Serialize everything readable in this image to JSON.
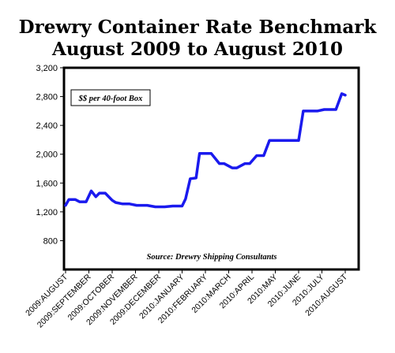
{
  "chart_data": {
    "type": "line",
    "title": [
      "Drewry Container Rate Benchmark",
      "August 2009 to August 2010"
    ],
    "legend_box_text": "$$ per 40-foot Box",
    "source_note": "Source: Drewry Shipping Consultants",
    "ylim": [
      400,
      3200
    ],
    "y_ticks": [
      800,
      1200,
      1600,
      2000,
      2400,
      2800,
      3200
    ],
    "y_tick_labels": [
      "800",
      "1,200",
      "1,600",
      "2,000",
      "2,400",
      "2,800",
      "3,200"
    ],
    "grid": false,
    "line_color": "#1a1aee",
    "x_tick_labels": [
      "2009:AUGUST",
      "2009:SEPTEMBER",
      "2009:OCTOBER",
      "2009:NOVEMBER",
      "2009:DECEMBER",
      "2010:JANUARY",
      "2010:FEBRUARY",
      "2010:MARCH",
      "2010:APRIL",
      "2010:MAY",
      "2010:JUNE",
      "2010:JULY",
      "2010:AUGUST"
    ],
    "series": [
      {
        "x": [
          0,
          0.14,
          0.42,
          0.6,
          0.88,
          1.1,
          1.3,
          1.45,
          1.7,
          2.0,
          2.15,
          2.45,
          2.75,
          3.05,
          3.5,
          3.85,
          4.25,
          4.6,
          5.0,
          5.15,
          5.35,
          5.6,
          5.75,
          6.0,
          6.25,
          6.6,
          6.8,
          7.15,
          7.35,
          7.7,
          7.9,
          8.2,
          8.5,
          8.75,
          9.0,
          9.5,
          10.0,
          10.2,
          10.5,
          10.8,
          11.1,
          11.3,
          11.6,
          11.85,
          12.0
        ],
        "y": [
          1290,
          1370,
          1370,
          1340,
          1340,
          1490,
          1410,
          1460,
          1460,
          1360,
          1330,
          1310,
          1310,
          1290,
          1290,
          1270,
          1270,
          1280,
          1280,
          1380,
          1660,
          1670,
          2010,
          2010,
          2010,
          1870,
          1870,
          1810,
          1810,
          1870,
          1870,
          1980,
          1980,
          2190,
          2190,
          2190,
          2190,
          2600,
          2600,
          2600,
          2620,
          2620,
          2620,
          2840,
          2820
        ]
      }
    ]
  }
}
